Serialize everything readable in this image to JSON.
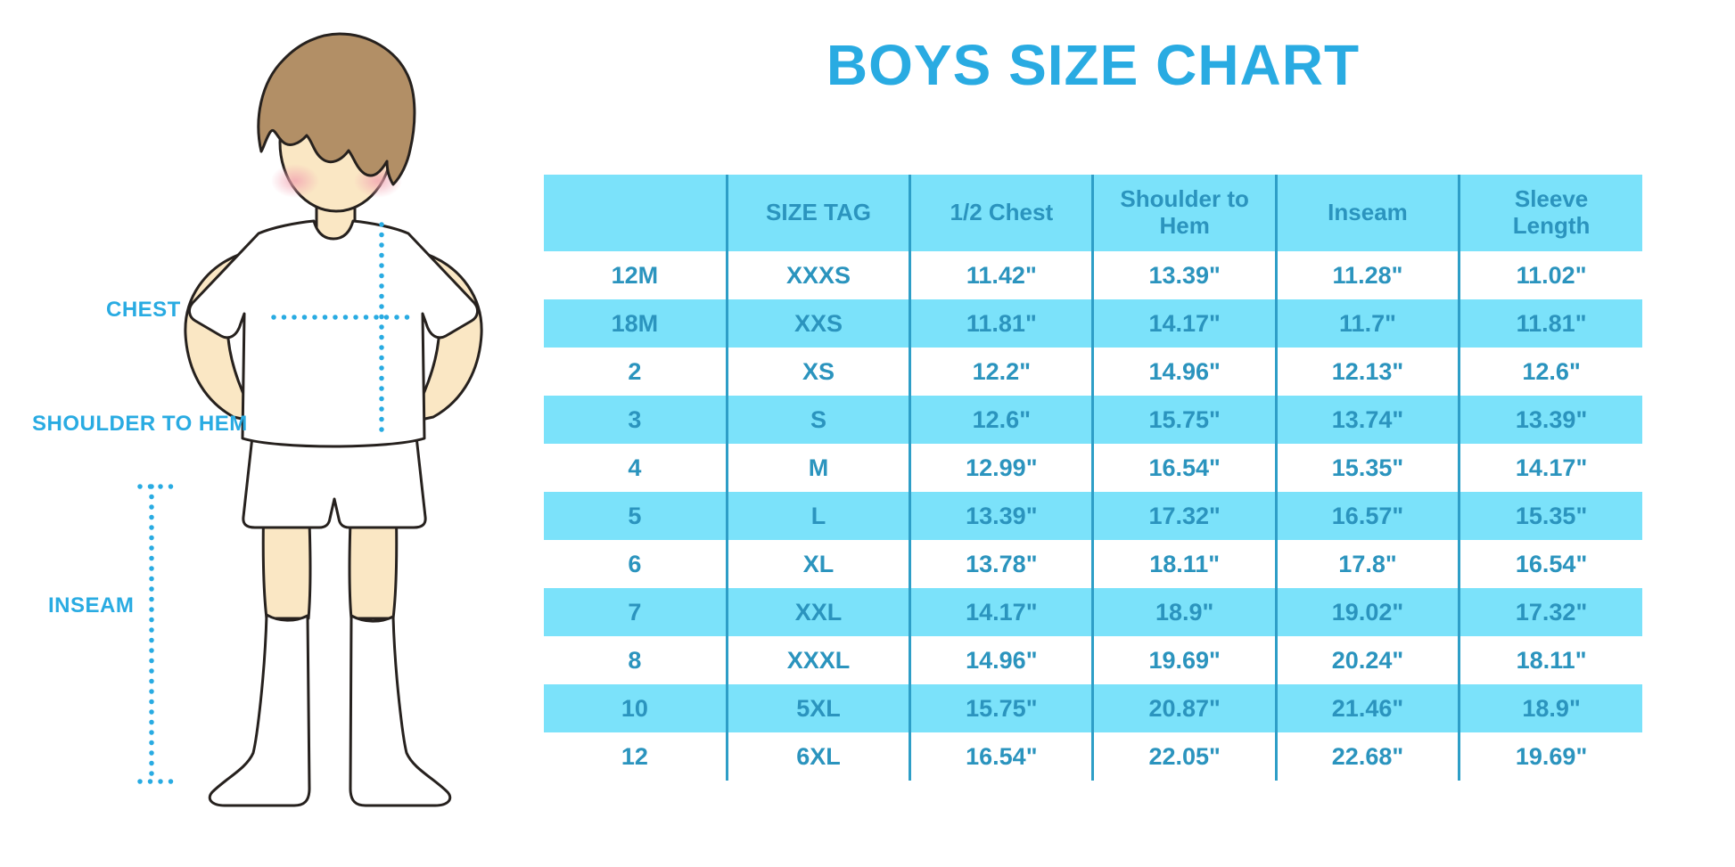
{
  "title": "BOYS SIZE CHART",
  "colors": {
    "accent": "#29ABE2",
    "band": "#7BE2FA",
    "table_text": "#2B94BE",
    "grid_line": "#2E9EC7",
    "skin": "#FAE7C4",
    "hair": "#B28F66",
    "blush": "#F2A4B2",
    "outline": "#26211E"
  },
  "diagram": {
    "labels": {
      "chest": "CHEST",
      "shoulder_to_hem": "SHOULDER TO HEM",
      "inseam": "INSEAM"
    }
  },
  "chart_data": {
    "type": "table",
    "title": "BOYS SIZE CHART",
    "units": "inches",
    "columns": [
      "",
      "SIZE TAG",
      "1/2 Chest",
      "Shoulder to Hem",
      "Inseam",
      "Sleeve Length"
    ],
    "rows": [
      [
        "12M",
        "XXXS",
        "11.42\"",
        "13.39\"",
        "11.28\"",
        "11.02\""
      ],
      [
        "18M",
        "XXS",
        "11.81\"",
        "14.17\"",
        "11.7\"",
        "11.81\""
      ],
      [
        "2",
        "XS",
        "12.2\"",
        "14.96\"",
        "12.13\"",
        "12.6\""
      ],
      [
        "3",
        "S",
        "12.6\"",
        "15.75\"",
        "13.74\"",
        "13.39\""
      ],
      [
        "4",
        "M",
        "12.99\"",
        "16.54\"",
        "15.35\"",
        "14.17\""
      ],
      [
        "5",
        "L",
        "13.39\"",
        "17.32\"",
        "16.57\"",
        "15.35\""
      ],
      [
        "6",
        "XL",
        "13.78\"",
        "18.11\"",
        "17.8\"",
        "16.54\""
      ],
      [
        "7",
        "XXL",
        "14.17\"",
        "18.9\"",
        "19.02\"",
        "17.32\""
      ],
      [
        "8",
        "XXXL",
        "14.96\"",
        "19.69\"",
        "20.24\"",
        "18.11\""
      ],
      [
        "10",
        "5XL",
        "15.75\"",
        "20.87\"",
        "21.46\"",
        "18.9\""
      ],
      [
        "12",
        "6XL",
        "16.54\"",
        "22.05\"",
        "22.68\"",
        "19.69\""
      ]
    ],
    "layout": {
      "header_fill": "cyan band",
      "row_banding": "alternating white / cyan starting with white",
      "grid": "vertical column separators only, no outer border",
      "legend": "none"
    }
  }
}
